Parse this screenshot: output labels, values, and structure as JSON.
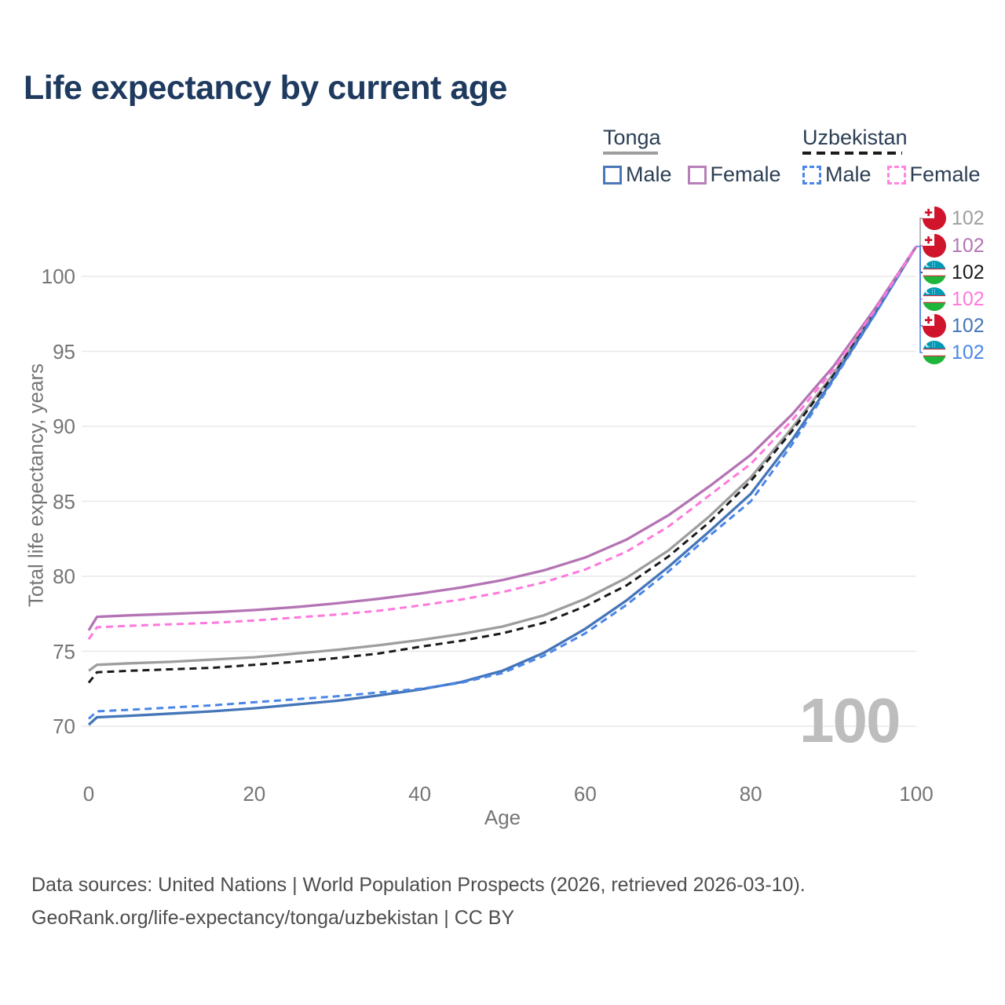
{
  "title": "Life expectancy by current age",
  "legend": {
    "groups": [
      {
        "country": "Tonga",
        "underline_style": "solid",
        "underline_color": "#9e9e9e",
        "items": [
          {
            "label": "Male",
            "box_color": "#4a77b8",
            "box_style": "solid"
          },
          {
            "label": "Female",
            "box_color": "#b87eb8",
            "box_style": "solid"
          }
        ]
      },
      {
        "country": "Uzbekistan",
        "underline_style": "dashed",
        "underline_color": "#1a1a1a",
        "items": [
          {
            "label": "Male",
            "box_color": "#4a86e8",
            "box_style": "dashed"
          },
          {
            "label": "Female",
            "box_color": "#ff85e0",
            "box_style": "dashed"
          }
        ]
      }
    ]
  },
  "chart_data": {
    "type": "line",
    "title": "Life expectancy by current age",
    "xlabel": "Age",
    "ylabel": "Total life expectancy, years",
    "x_ticks": [
      0,
      20,
      40,
      60,
      80,
      100
    ],
    "y_ticks": [
      70,
      75,
      80,
      85,
      90,
      95,
      100
    ],
    "xlim": [
      0,
      100
    ],
    "ylim": [
      68,
      103
    ],
    "grid": "horizontal",
    "legend_position": "top-right",
    "x": [
      0,
      1,
      5,
      10,
      15,
      20,
      25,
      30,
      35,
      40,
      45,
      50,
      55,
      60,
      65,
      70,
      75,
      80,
      85,
      90,
      95,
      100
    ],
    "series": [
      {
        "name": "Tonga total",
        "slug": "tonga-total",
        "country": "Tonga",
        "sex": "total",
        "style": "solid",
        "color": "#9e9e9e",
        "values": [
          73.7,
          74.1,
          74.2,
          74.3,
          74.45,
          74.6,
          74.85,
          75.1,
          75.4,
          75.75,
          76.15,
          76.65,
          77.4,
          78.5,
          79.9,
          81.7,
          84.0,
          86.6,
          89.9,
          93.5,
          97.7,
          102
        ]
      },
      {
        "name": "Uzbekistan total",
        "slug": "uzbekistan-total",
        "country": "Uzbekistan",
        "sex": "total",
        "style": "dashed",
        "color": "#1a1a1a",
        "values": [
          72.9,
          73.6,
          73.7,
          73.8,
          73.9,
          74.1,
          74.3,
          74.55,
          74.85,
          75.3,
          75.7,
          76.2,
          76.9,
          78.0,
          79.4,
          81.3,
          83.6,
          86.35,
          89.7,
          93.4,
          97.6,
          102
        ]
      },
      {
        "name": "Tonga male",
        "slug": "tonga-male",
        "country": "Tonga",
        "sex": "male",
        "style": "solid",
        "color": "#4475b8",
        "values": [
          70.1,
          70.6,
          70.7,
          70.85,
          71.0,
          71.2,
          71.45,
          71.7,
          72.05,
          72.45,
          72.95,
          73.7,
          74.9,
          76.5,
          78.4,
          80.6,
          83.0,
          85.5,
          89.1,
          93.2,
          97.5,
          102
        ]
      },
      {
        "name": "Uzbekistan male",
        "slug": "uzbekistan-male",
        "country": "Uzbekistan",
        "sex": "male",
        "style": "dashed",
        "color": "#4a86e8",
        "values": [
          70.5,
          71.0,
          71.1,
          71.25,
          71.4,
          71.6,
          71.8,
          72.0,
          72.25,
          72.5,
          72.9,
          73.55,
          74.7,
          76.2,
          78.1,
          80.3,
          82.7,
          85.0,
          88.8,
          93.1,
          97.45,
          102
        ]
      },
      {
        "name": "Tonga female",
        "slug": "tonga-female",
        "country": "Tonga",
        "sex": "female",
        "style": "solid",
        "color": "#b474b4",
        "values": [
          76.4,
          77.3,
          77.4,
          77.5,
          77.6,
          77.75,
          77.95,
          78.2,
          78.5,
          78.85,
          79.25,
          79.75,
          80.4,
          81.25,
          82.45,
          84.05,
          86.0,
          88.1,
          90.8,
          94.0,
          97.85,
          102
        ]
      },
      {
        "name": "Uzbekistan female",
        "slug": "uzbekistan-female",
        "country": "Uzbekistan",
        "sex": "female",
        "style": "dashed",
        "color": "#ff78dc",
        "values": [
          75.8,
          76.6,
          76.7,
          76.8,
          76.9,
          77.05,
          77.25,
          77.45,
          77.7,
          78.05,
          78.45,
          78.95,
          79.6,
          80.45,
          81.65,
          83.3,
          85.4,
          87.5,
          90.4,
          93.8,
          97.75,
          102
        ]
      }
    ]
  },
  "end_labels": [
    {
      "flag": "tonga",
      "value": "102",
      "color": "#9e9e9e",
      "series": "tonga-total"
    },
    {
      "flag": "tonga",
      "value": "102",
      "color": "#b474b4",
      "series": "tonga-female"
    },
    {
      "flag": "uzbekistan",
      "value": "102",
      "color": "#1a1a1a",
      "series": "uzbekistan-total"
    },
    {
      "flag": "uzbekistan",
      "value": "102",
      "color": "#ff78dc",
      "series": "uzbekistan-female"
    },
    {
      "flag": "tonga",
      "value": "102",
      "color": "#4475b8",
      "series": "tonga-male"
    },
    {
      "flag": "uzbekistan",
      "value": "102",
      "color": "#4a86e8",
      "series": "uzbekistan-male"
    }
  ],
  "watermark": "100",
  "footer": {
    "line1": "Data sources: United Nations | World Population Prospects (2026, retrieved 2026-03-10).",
    "line2": "GeoRank.org/life-expectancy/tonga/uzbekistan | CC BY"
  }
}
